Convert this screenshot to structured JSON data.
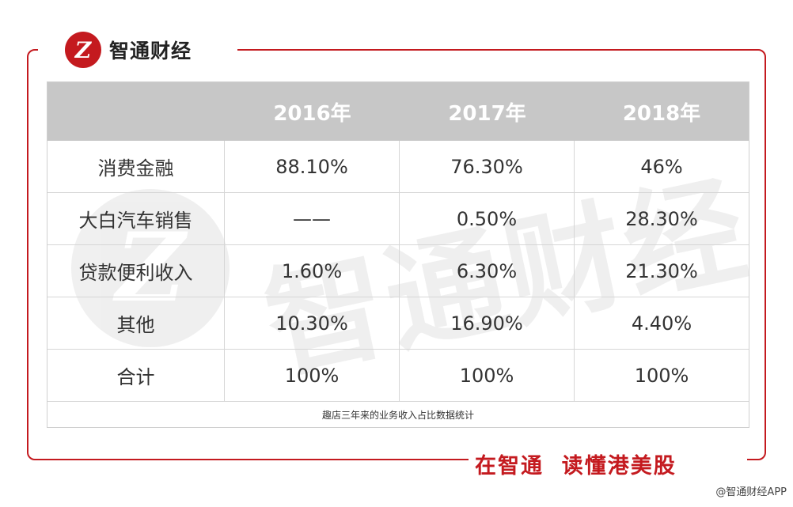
{
  "brand": {
    "logo_letter": "Z",
    "name": "智通财经"
  },
  "table": {
    "headers": [
      "",
      "2016年",
      "2017年",
      "2018年"
    ],
    "rows": [
      [
        "消费金融",
        "88.10%",
        "76.30%",
        "46%"
      ],
      [
        "大白汽车销售",
        "——",
        "0.50%",
        "28.30%"
      ],
      [
        "贷款便利收入",
        "1.60%",
        "6.30%",
        "21.30%"
      ],
      [
        "其他",
        "10.30%",
        "16.90%",
        "4.40%"
      ],
      [
        "合计",
        "100%",
        "100%",
        "100%"
      ]
    ],
    "footnote": "趣店三年来的业务收入占比数据统计"
  },
  "slogan": "在智通  读懂港美股",
  "credit": "@智通财经APP",
  "watermark": {
    "text": "智通财经"
  },
  "colors": {
    "brand_red": "#c41a1f",
    "header_gray": "#c7c7c7"
  }
}
